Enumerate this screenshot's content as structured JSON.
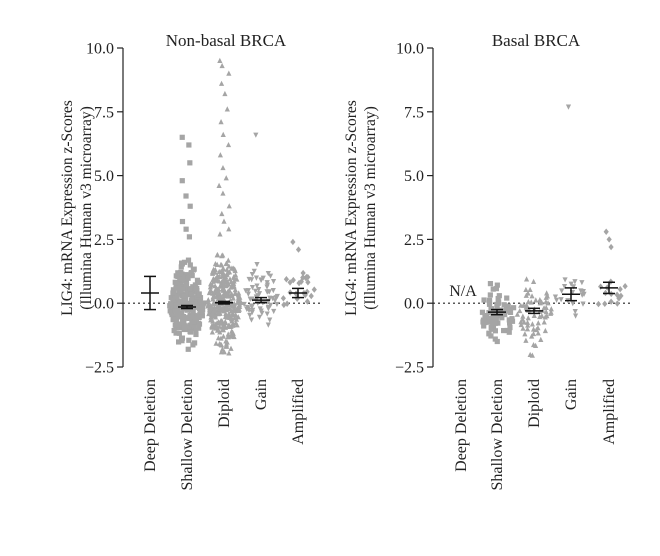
{
  "chart_data": [
    {
      "type": "scatter",
      "title": "Non-basal BRCA",
      "ylabel_line1": "LIG4: mRNA Expression z-Scores",
      "ylabel_line2": "(Illumina Human v3 microarray)",
      "ylim": [
        -2.5,
        10.0
      ],
      "yticks": [
        "10.0",
        "7.5",
        "5.0",
        "2.5",
        "0.0",
        "−2.5"
      ],
      "ytick_values": [
        10.0,
        7.5,
        5.0,
        2.5,
        0.0,
        -2.5
      ],
      "reference_line": 0.0,
      "categories": [
        "Deep Deletion",
        "Shallow Deletion",
        "Diploid",
        "Gain",
        "Amplified"
      ],
      "groups": [
        {
          "name": "Deep Deletion",
          "marker": "circle",
          "n": 0,
          "min": 0,
          "max": 0,
          "mean": 0.4,
          "err": 0.65,
          "outliers": []
        },
        {
          "name": "Shallow Deletion",
          "marker": "square",
          "n": 240,
          "min": -2.1,
          "max": 2.1,
          "mean": -0.15,
          "err": 0.06,
          "outliers": [
            6.5,
            6.2,
            5.5,
            4.8,
            4.2,
            3.8,
            3.2,
            2.9,
            2.6
          ]
        },
        {
          "name": "Diploid",
          "marker": "triangle",
          "n": 320,
          "min": -2.3,
          "max": 2.4,
          "mean": 0.02,
          "err": 0.05,
          "outliers": [
            9.5,
            9.3,
            9.0,
            8.6,
            8.2,
            7.6,
            7.1,
            6.6,
            6.2,
            5.8,
            5.3,
            4.9,
            4.6,
            4.3,
            3.8,
            3.5,
            3.2,
            2.9,
            2.7
          ]
        },
        {
          "name": "Gain",
          "marker": "triangle-down",
          "n": 65,
          "min": -1.2,
          "max": 1.9,
          "mean": 0.12,
          "err": 0.1,
          "outliers": [
            6.6
          ]
        },
        {
          "name": "Amplified",
          "marker": "diamond",
          "n": 24,
          "min": -0.8,
          "max": 1.9,
          "mean": 0.4,
          "err": 0.18,
          "outliers": [
            2.4,
            2.1
          ]
        }
      ]
    },
    {
      "type": "scatter",
      "title": "Basal BRCA",
      "ylabel_line1": "LIG4: mRNA Expression z-Scores",
      "ylabel_line2": "(Illumina Human v3 microarray)",
      "ylim": [
        -2.5,
        10.0
      ],
      "yticks": [
        "10.0",
        "7.5",
        "5.0",
        "2.5",
        "0.0",
        "−2.5"
      ],
      "ytick_values": [
        10.0,
        7.5,
        5.0,
        2.5,
        0.0,
        -2.5
      ],
      "reference_line": 0.0,
      "categories": [
        "Deep Deletion",
        "Shallow Deletion",
        "Diploid",
        "Gain",
        "Amplified"
      ],
      "na_label": "N/A",
      "groups": [
        {
          "name": "Deep Deletion",
          "marker": "none",
          "n": 0,
          "min": 0,
          "max": 0,
          "mean": null,
          "err": 0,
          "outliers": []
        },
        {
          "name": "Shallow Deletion",
          "marker": "square",
          "n": 70,
          "min": -2.2,
          "max": 1.4,
          "mean": -0.35,
          "err": 0.1,
          "outliers": []
        },
        {
          "name": "Diploid",
          "marker": "triangle",
          "n": 70,
          "min": -2.3,
          "max": 1.3,
          "mean": -0.3,
          "err": 0.1,
          "outliers": []
        },
        {
          "name": "Gain",
          "marker": "triangle-down",
          "n": 20,
          "min": -0.8,
          "max": 1.5,
          "mean": 0.35,
          "err": 0.25,
          "outliers": [
            7.7
          ]
        },
        {
          "name": "Amplified",
          "marker": "diamond",
          "n": 14,
          "min": -0.7,
          "max": 1.4,
          "mean": 0.6,
          "err": 0.22,
          "outliers": [
            2.8,
            2.5,
            2.2
          ]
        }
      ]
    }
  ]
}
